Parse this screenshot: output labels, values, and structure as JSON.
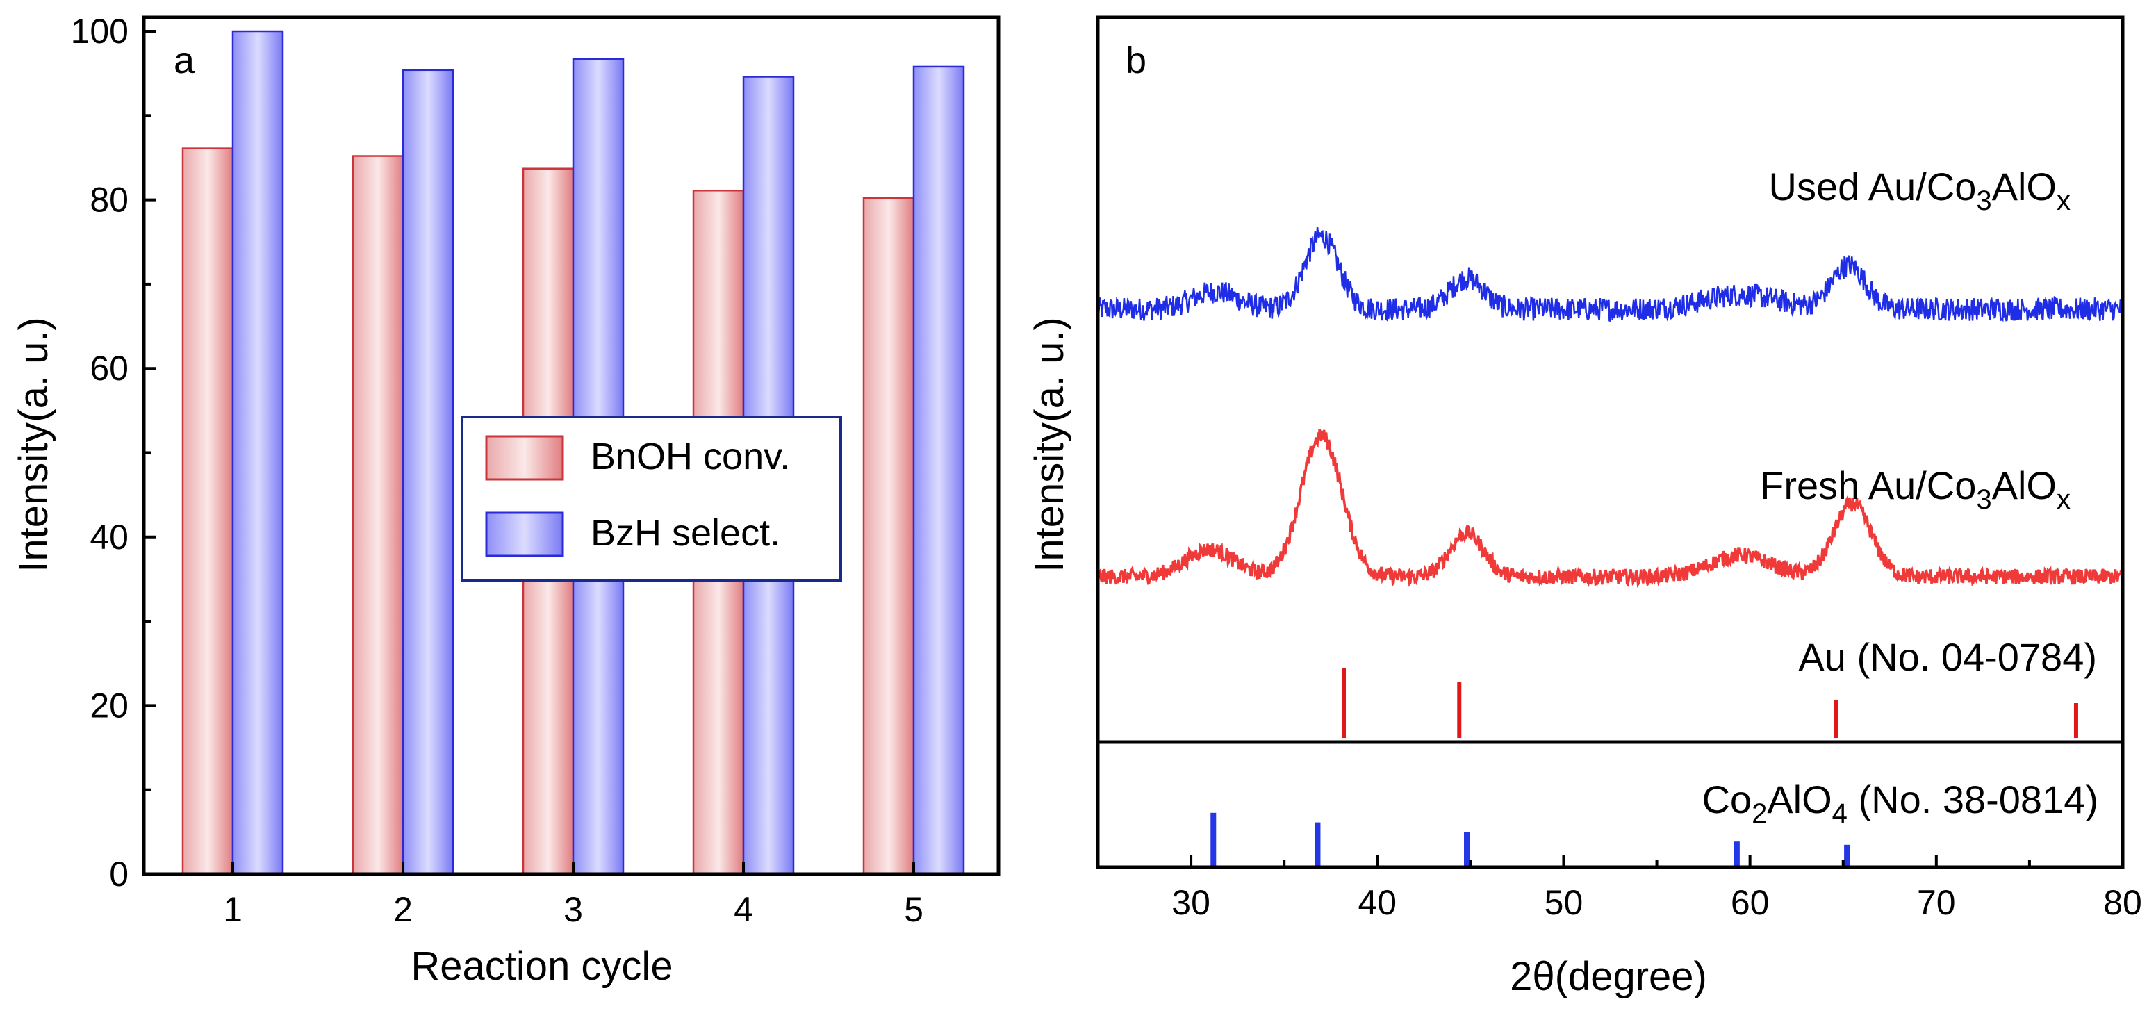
{
  "chart_data": [
    {
      "panel": "a",
      "type": "bar",
      "xlabel": "Reaction cycle",
      "ylabel": "Intensity(a. u.)",
      "categories": [
        "1",
        "2",
        "3",
        "4",
        "5"
      ],
      "ylim": [
        0,
        100
      ],
      "yticks": [
        0,
        20,
        40,
        60,
        80,
        100
      ],
      "legend_position": "center-right",
      "series": [
        {
          "name": "BnOH conv.",
          "color": "#d9696e",
          "values": [
            86.1,
            85.2,
            83.7,
            81.1,
            80.2
          ]
        },
        {
          "name": "BzH select.",
          "color": "#5b5bf0",
          "values": [
            100,
            95.4,
            96.7,
            94.6,
            95.8
          ]
        }
      ]
    },
    {
      "panel": "b",
      "type": "line",
      "xlabel": "2θ(degree)",
      "ylabel": "Intensity(a. u.)",
      "xlim": [
        25,
        80
      ],
      "xticks": [
        30,
        40,
        50,
        60,
        70,
        80
      ],
      "series": [
        {
          "name": "Used Au/Co3AlOx",
          "label_parts": [
            "Used Au/Co",
            "3",
            "AlO",
            "x"
          ],
          "color": "#1f2ee6",
          "baseline": 1.0,
          "noise": 0.12,
          "peaks": [
            {
              "center": 31.3,
              "height": 0.18,
              "width": 1.2
            },
            {
              "center": 37.0,
              "height": 0.75,
              "width": 0.9
            },
            {
              "center": 44.8,
              "height": 0.32,
              "width": 0.9
            },
            {
              "center": 59.5,
              "height": 0.15,
              "width": 2.0
            },
            {
              "center": 65.3,
              "height": 0.45,
              "width": 0.9
            }
          ]
        },
        {
          "name": "Fresh Au/Co3AlOx",
          "label_parts": [
            "Fresh Au/Co",
            "3",
            "AlO",
            "x"
          ],
          "color": "#f03a3a",
          "baseline": 0.0,
          "noise": 0.08,
          "peaks": [
            {
              "center": 31.0,
              "height": 0.28,
              "width": 1.3
            },
            {
              "center": 37.0,
              "height": 1.45,
              "width": 1.1
            },
            {
              "center": 44.8,
              "height": 0.45,
              "width": 0.9
            },
            {
              "center": 59.5,
              "height": 0.22,
              "width": 1.6
            },
            {
              "center": 65.5,
              "height": 0.75,
              "width": 1.0
            }
          ]
        }
      ],
      "reference_patterns": [
        {
          "name": "Au (No. 04-0784)",
          "label": "Au (No. 04-0784)",
          "color": "#e01818",
          "lines": [
            {
              "x": 38.2,
              "intensity": 1.0
            },
            {
              "x": 44.4,
              "intensity": 0.8
            },
            {
              "x": 64.6,
              "intensity": 0.55
            },
            {
              "x": 77.5,
              "intensity": 0.5
            }
          ]
        },
        {
          "name": "Co2AlO4 (No. 38-0814)",
          "label_parts": [
            "Co",
            "2",
            "AlO",
            "4",
            " (No. 38-0814)"
          ],
          "color": "#2437e6",
          "lines": [
            {
              "x": 31.2,
              "intensity": 0.85
            },
            {
              "x": 36.8,
              "intensity": 0.7
            },
            {
              "x": 44.8,
              "intensity": 0.55
            },
            {
              "x": 59.3,
              "intensity": 0.4
            },
            {
              "x": 65.2,
              "intensity": 0.35
            }
          ]
        }
      ]
    }
  ]
}
